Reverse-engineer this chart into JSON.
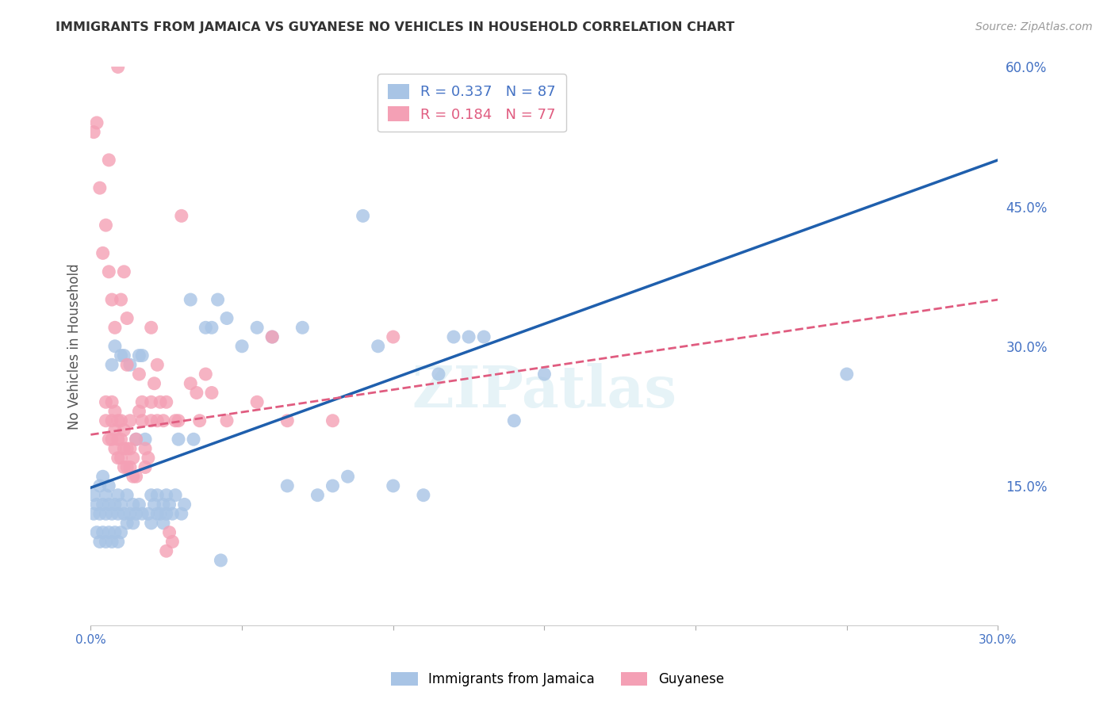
{
  "title": "IMMIGRANTS FROM JAMAICA VS GUYANESE NO VEHICLES IN HOUSEHOLD CORRELATION CHART",
  "source": "Source: ZipAtlas.com",
  "ylabel": "No Vehicles in Household",
  "xlim": [
    0.0,
    0.3
  ],
  "ylim": [
    0.0,
    0.6
  ],
  "xticks": [
    0.0,
    0.05,
    0.1,
    0.15,
    0.2,
    0.25,
    0.3
  ],
  "yticks_right": [
    0.0,
    0.15,
    0.3,
    0.45,
    0.6
  ],
  "ytick_labels_right": [
    "",
    "15.0%",
    "30.0%",
    "45.0%",
    "60.0%"
  ],
  "grid_color": "#C8C8C8",
  "background_color": "#FFFFFF",
  "title_color": "#333333",
  "axis_color": "#4472C4",
  "jamaica_color": "#A8C4E5",
  "guyanese_color": "#F4A0B5",
  "jamaica_line_color": "#1F5FAD",
  "guyanese_line_color": "#E05C80",
  "watermark": "ZIPatlas",
  "jamaica_line": [
    0.148,
    0.5
  ],
  "guyanese_line": [
    0.205,
    0.35
  ],
  "jamaica_data": [
    [
      0.001,
      0.12
    ],
    [
      0.001,
      0.14
    ],
    [
      0.002,
      0.1
    ],
    [
      0.002,
      0.13
    ],
    [
      0.003,
      0.09
    ],
    [
      0.003,
      0.12
    ],
    [
      0.003,
      0.15
    ],
    [
      0.004,
      0.1
    ],
    [
      0.004,
      0.13
    ],
    [
      0.004,
      0.16
    ],
    [
      0.005,
      0.09
    ],
    [
      0.005,
      0.12
    ],
    [
      0.005,
      0.14
    ],
    [
      0.006,
      0.1
    ],
    [
      0.006,
      0.13
    ],
    [
      0.006,
      0.15
    ],
    [
      0.007,
      0.09
    ],
    [
      0.007,
      0.12
    ],
    [
      0.007,
      0.28
    ],
    [
      0.008,
      0.1
    ],
    [
      0.008,
      0.13
    ],
    [
      0.008,
      0.3
    ],
    [
      0.009,
      0.09
    ],
    [
      0.009,
      0.12
    ],
    [
      0.009,
      0.14
    ],
    [
      0.01,
      0.1
    ],
    [
      0.01,
      0.13
    ],
    [
      0.01,
      0.29
    ],
    [
      0.011,
      0.12
    ],
    [
      0.011,
      0.29
    ],
    [
      0.012,
      0.11
    ],
    [
      0.012,
      0.14
    ],
    [
      0.013,
      0.12
    ],
    [
      0.013,
      0.28
    ],
    [
      0.014,
      0.11
    ],
    [
      0.014,
      0.13
    ],
    [
      0.015,
      0.12
    ],
    [
      0.015,
      0.2
    ],
    [
      0.016,
      0.13
    ],
    [
      0.016,
      0.29
    ],
    [
      0.017,
      0.12
    ],
    [
      0.017,
      0.29
    ],
    [
      0.018,
      0.2
    ],
    [
      0.019,
      0.12
    ],
    [
      0.02,
      0.11
    ],
    [
      0.02,
      0.14
    ],
    [
      0.021,
      0.13
    ],
    [
      0.022,
      0.12
    ],
    [
      0.022,
      0.14
    ],
    [
      0.023,
      0.12
    ],
    [
      0.024,
      0.11
    ],
    [
      0.024,
      0.13
    ],
    [
      0.025,
      0.12
    ],
    [
      0.025,
      0.14
    ],
    [
      0.026,
      0.13
    ],
    [
      0.027,
      0.12
    ],
    [
      0.028,
      0.14
    ],
    [
      0.029,
      0.2
    ],
    [
      0.03,
      0.12
    ],
    [
      0.031,
      0.13
    ],
    [
      0.033,
      0.35
    ],
    [
      0.034,
      0.2
    ],
    [
      0.038,
      0.32
    ],
    [
      0.04,
      0.32
    ],
    [
      0.042,
      0.35
    ],
    [
      0.043,
      0.07
    ],
    [
      0.045,
      0.33
    ],
    [
      0.05,
      0.3
    ],
    [
      0.055,
      0.32
    ],
    [
      0.06,
      0.31
    ],
    [
      0.065,
      0.15
    ],
    [
      0.07,
      0.32
    ],
    [
      0.075,
      0.14
    ],
    [
      0.08,
      0.15
    ],
    [
      0.085,
      0.16
    ],
    [
      0.09,
      0.44
    ],
    [
      0.095,
      0.3
    ],
    [
      0.1,
      0.15
    ],
    [
      0.11,
      0.14
    ],
    [
      0.115,
      0.27
    ],
    [
      0.12,
      0.31
    ],
    [
      0.125,
      0.31
    ],
    [
      0.13,
      0.31
    ],
    [
      0.14,
      0.22
    ],
    [
      0.15,
      0.27
    ],
    [
      0.25,
      0.27
    ]
  ],
  "guyanese_data": [
    [
      0.001,
      0.53
    ],
    [
      0.002,
      0.54
    ],
    [
      0.003,
      0.47
    ],
    [
      0.004,
      0.4
    ],
    [
      0.005,
      0.43
    ],
    [
      0.005,
      0.22
    ],
    [
      0.005,
      0.24
    ],
    [
      0.006,
      0.5
    ],
    [
      0.006,
      0.2
    ],
    [
      0.006,
      0.38
    ],
    [
      0.007,
      0.35
    ],
    [
      0.007,
      0.22
    ],
    [
      0.007,
      0.2
    ],
    [
      0.007,
      0.24
    ],
    [
      0.008,
      0.32
    ],
    [
      0.008,
      0.19
    ],
    [
      0.008,
      0.21
    ],
    [
      0.008,
      0.23
    ],
    [
      0.009,
      0.6
    ],
    [
      0.009,
      0.18
    ],
    [
      0.009,
      0.2
    ],
    [
      0.009,
      0.22
    ],
    [
      0.01,
      0.35
    ],
    [
      0.01,
      0.18
    ],
    [
      0.01,
      0.2
    ],
    [
      0.01,
      0.22
    ],
    [
      0.011,
      0.38
    ],
    [
      0.011,
      0.17
    ],
    [
      0.011,
      0.19
    ],
    [
      0.011,
      0.21
    ],
    [
      0.012,
      0.33
    ],
    [
      0.012,
      0.17
    ],
    [
      0.012,
      0.19
    ],
    [
      0.012,
      0.28
    ],
    [
      0.013,
      0.17
    ],
    [
      0.013,
      0.19
    ],
    [
      0.013,
      0.22
    ],
    [
      0.014,
      0.16
    ],
    [
      0.014,
      0.18
    ],
    [
      0.015,
      0.16
    ],
    [
      0.015,
      0.2
    ],
    [
      0.016,
      0.23
    ],
    [
      0.016,
      0.27
    ],
    [
      0.017,
      0.22
    ],
    [
      0.017,
      0.24
    ],
    [
      0.018,
      0.17
    ],
    [
      0.018,
      0.19
    ],
    [
      0.019,
      0.18
    ],
    [
      0.02,
      0.22
    ],
    [
      0.02,
      0.24
    ],
    [
      0.02,
      0.32
    ],
    [
      0.021,
      0.26
    ],
    [
      0.022,
      0.22
    ],
    [
      0.022,
      0.28
    ],
    [
      0.023,
      0.24
    ],
    [
      0.024,
      0.22
    ],
    [
      0.025,
      0.08
    ],
    [
      0.025,
      0.24
    ],
    [
      0.026,
      0.1
    ],
    [
      0.027,
      0.09
    ],
    [
      0.028,
      0.22
    ],
    [
      0.029,
      0.22
    ],
    [
      0.03,
      0.44
    ],
    [
      0.033,
      0.26
    ],
    [
      0.035,
      0.25
    ],
    [
      0.036,
      0.22
    ],
    [
      0.038,
      0.27
    ],
    [
      0.04,
      0.25
    ],
    [
      0.045,
      0.22
    ],
    [
      0.055,
      0.24
    ],
    [
      0.06,
      0.31
    ],
    [
      0.065,
      0.22
    ],
    [
      0.08,
      0.22
    ],
    [
      0.1,
      0.31
    ]
  ]
}
